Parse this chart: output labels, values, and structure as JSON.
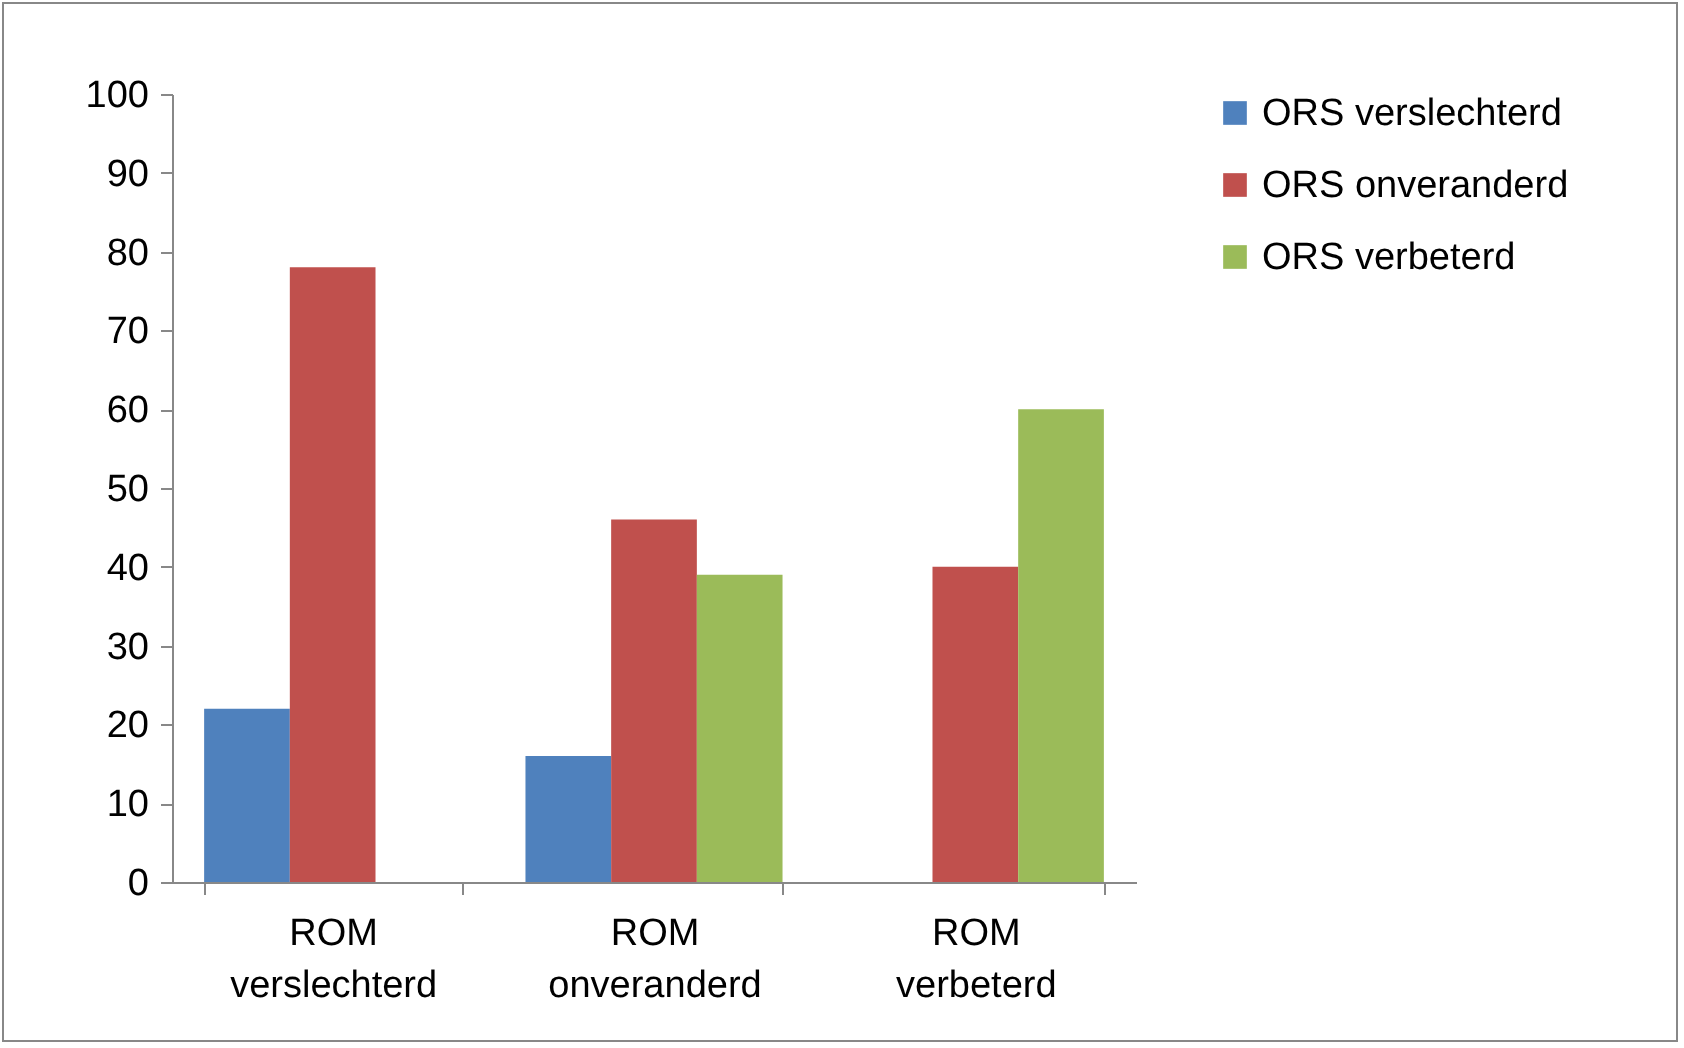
{
  "chart_data": {
    "type": "bar",
    "categories": [
      "ROM verslechterd",
      "ROM onveranderd",
      "ROM verbeterd"
    ],
    "series": [
      {
        "name": "ORS verslechterd",
        "color": "#4f81bd",
        "values": [
          22,
          16,
          null
        ]
      },
      {
        "name": "ORS onveranderd",
        "color": "#c0504d",
        "values": [
          78,
          46,
          40
        ]
      },
      {
        "name": "ORS verbeterd",
        "color": "#9bbb59",
        "values": [
          null,
          39,
          60
        ]
      }
    ],
    "ylim": [
      0,
      100
    ],
    "yticks": [
      0,
      10,
      20,
      30,
      40,
      50,
      60,
      70,
      80,
      90,
      100
    ],
    "grid": false,
    "legend": "right"
  }
}
